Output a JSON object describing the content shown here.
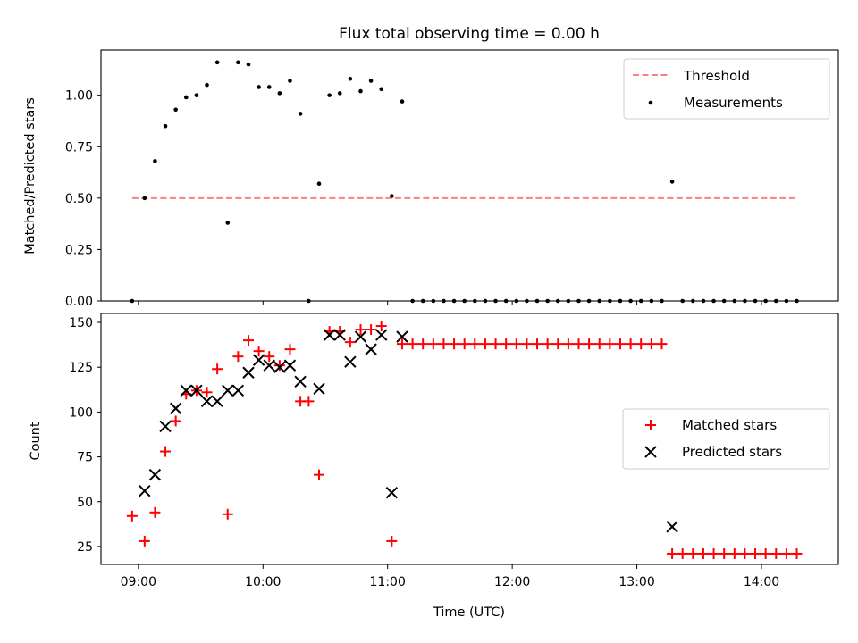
{
  "chart_data": [
    {
      "type": "scatter",
      "title": "Flux total observing time = 0.00 h",
      "xlabel": "",
      "ylabel": "Matched/Predicted stars",
      "ylim": [
        0,
        1.22
      ],
      "yticks": [
        "0.00",
        "0.25",
        "0.50",
        "0.75",
        "1.00"
      ],
      "ytick_values": [
        0,
        0.25,
        0.5,
        0.75,
        1.0
      ],
      "legend_position": "top-right",
      "threshold": {
        "name": "Threshold",
        "value": 0.5,
        "x_start": "08:57",
        "x_end": "14:17",
        "color": "#ff7f7f",
        "style": "dashed"
      },
      "series": [
        {
          "name": "Measurements",
          "color": "#000000",
          "marker": "dot",
          "points": [
            [
              "08:57",
              0.0
            ],
            [
              "09:03",
              0.5
            ],
            [
              "09:08",
              0.68
            ],
            [
              "09:13",
              0.85
            ],
            [
              "09:18",
              0.93
            ],
            [
              "09:23",
              0.99
            ],
            [
              "09:28",
              1.0
            ],
            [
              "09:33",
              1.05
            ],
            [
              "09:38",
              1.16
            ],
            [
              "09:43",
              0.38
            ],
            [
              "09:48",
              1.16
            ],
            [
              "09:53",
              1.15
            ],
            [
              "09:58",
              1.04
            ],
            [
              "10:03",
              1.04
            ],
            [
              "10:08",
              1.01
            ],
            [
              "10:13",
              1.07
            ],
            [
              "10:18",
              0.91
            ],
            [
              "10:22",
              0.0
            ],
            [
              "10:27",
              0.57
            ],
            [
              "10:32",
              1.0
            ],
            [
              "10:37",
              1.01
            ],
            [
              "10:42",
              1.08
            ],
            [
              "10:47",
              1.02
            ],
            [
              "10:52",
              1.07
            ],
            [
              "10:57",
              1.03
            ],
            [
              "11:02",
              0.51
            ],
            [
              "11:07",
              0.97
            ],
            [
              "11:12",
              0.0
            ],
            [
              "11:17",
              0.0
            ],
            [
              "11:22",
              0.0
            ],
            [
              "11:27",
              0.0
            ],
            [
              "11:32",
              0.0
            ],
            [
              "11:37",
              0.0
            ],
            [
              "11:42",
              0.0
            ],
            [
              "11:47",
              0.0
            ],
            [
              "11:52",
              0.0
            ],
            [
              "11:57",
              0.0
            ],
            [
              "12:02",
              0.0
            ],
            [
              "12:07",
              0.0
            ],
            [
              "12:12",
              0.0
            ],
            [
              "12:17",
              0.0
            ],
            [
              "12:22",
              0.0
            ],
            [
              "12:27",
              0.0
            ],
            [
              "12:32",
              0.0
            ],
            [
              "12:37",
              0.0
            ],
            [
              "12:42",
              0.0
            ],
            [
              "12:47",
              0.0
            ],
            [
              "12:52",
              0.0
            ],
            [
              "12:57",
              0.0
            ],
            [
              "13:02",
              0.0
            ],
            [
              "13:07",
              0.0
            ],
            [
              "13:12",
              0.0
            ],
            [
              "13:17",
              0.58
            ],
            [
              "13:22",
              0.0
            ],
            [
              "13:27",
              0.0
            ],
            [
              "13:32",
              0.0
            ],
            [
              "13:37",
              0.0
            ],
            [
              "13:42",
              0.0
            ],
            [
              "13:47",
              0.0
            ],
            [
              "13:52",
              0.0
            ],
            [
              "13:57",
              0.0
            ],
            [
              "14:02",
              0.0
            ],
            [
              "14:07",
              0.0
            ],
            [
              "14:12",
              0.0
            ],
            [
              "14:17",
              0.0
            ]
          ]
        }
      ]
    },
    {
      "type": "scatter",
      "title": "",
      "xlabel": "Time (UTC)",
      "ylabel": "Count",
      "xlim": [
        "08:42",
        "14:37"
      ],
      "xticks": [
        "09:00",
        "10:00",
        "11:00",
        "12:00",
        "13:00",
        "14:00"
      ],
      "ylim": [
        15,
        155
      ],
      "yticks": [
        "25",
        "50",
        "75",
        "100",
        "125",
        "150"
      ],
      "ytick_values": [
        25,
        50,
        75,
        100,
        125,
        150
      ],
      "legend_position": "center-right",
      "series": [
        {
          "name": "Matched stars",
          "color": "#ff0000",
          "marker": "plus",
          "points": [
            [
              "08:57",
              42
            ],
            [
              "09:03",
              28
            ],
            [
              "09:08",
              44
            ],
            [
              "09:13",
              78
            ],
            [
              "09:18",
              95
            ],
            [
              "09:23",
              110
            ],
            [
              "09:28",
              112
            ],
            [
              "09:33",
              111
            ],
            [
              "09:38",
              124
            ],
            [
              "09:43",
              43
            ],
            [
              "09:48",
              131
            ],
            [
              "09:53",
              140
            ],
            [
              "09:58",
              134
            ],
            [
              "10:03",
              131
            ],
            [
              "10:08",
              126
            ],
            [
              "10:13",
              135
            ],
            [
              "10:18",
              106
            ],
            [
              "10:22",
              106
            ],
            [
              "10:27",
              65
            ],
            [
              "10:32",
              145
            ],
            [
              "10:37",
              145
            ],
            [
              "10:42",
              139
            ],
            [
              "10:47",
              146
            ],
            [
              "10:52",
              146
            ],
            [
              "10:57",
              148
            ],
            [
              "11:02",
              28
            ],
            [
              "11:07",
              138
            ],
            [
              "11:12",
              138
            ],
            [
              "11:17",
              138
            ],
            [
              "11:22",
              138
            ],
            [
              "11:27",
              138
            ],
            [
              "11:32",
              138
            ],
            [
              "11:37",
              138
            ],
            [
              "11:42",
              138
            ],
            [
              "11:47",
              138
            ],
            [
              "11:52",
              138
            ],
            [
              "11:57",
              138
            ],
            [
              "12:02",
              138
            ],
            [
              "12:07",
              138
            ],
            [
              "12:12",
              138
            ],
            [
              "12:17",
              138
            ],
            [
              "12:22",
              138
            ],
            [
              "12:27",
              138
            ],
            [
              "12:32",
              138
            ],
            [
              "12:37",
              138
            ],
            [
              "12:42",
              138
            ],
            [
              "12:47",
              138
            ],
            [
              "12:52",
              138
            ],
            [
              "12:57",
              138
            ],
            [
              "13:02",
              138
            ],
            [
              "13:07",
              138
            ],
            [
              "13:12",
              138
            ],
            [
              "13:17",
              21
            ],
            [
              "13:22",
              21
            ],
            [
              "13:27",
              21
            ],
            [
              "13:32",
              21
            ],
            [
              "13:37",
              21
            ],
            [
              "13:42",
              21
            ],
            [
              "13:47",
              21
            ],
            [
              "13:52",
              21
            ],
            [
              "13:57",
              21
            ],
            [
              "14:02",
              21
            ],
            [
              "14:07",
              21
            ],
            [
              "14:12",
              21
            ],
            [
              "14:17",
              21
            ]
          ]
        },
        {
          "name": "Predicted stars",
          "color": "#000000",
          "marker": "x",
          "points": [
            [
              "09:03",
              56
            ],
            [
              "09:08",
              65
            ],
            [
              "09:13",
              92
            ],
            [
              "09:18",
              102
            ],
            [
              "09:23",
              112
            ],
            [
              "09:28",
              112
            ],
            [
              "09:33",
              106
            ],
            [
              "09:38",
              106
            ],
            [
              "09:43",
              112
            ],
            [
              "09:48",
              112
            ],
            [
              "09:53",
              122
            ],
            [
              "09:58",
              129
            ],
            [
              "10:03",
              126
            ],
            [
              "10:08",
              125
            ],
            [
              "10:13",
              126
            ],
            [
              "10:18",
              117
            ],
            [
              "10:27",
              113
            ],
            [
              "10:32",
              143
            ],
            [
              "10:37",
              143
            ],
            [
              "10:42",
              128
            ],
            [
              "10:47",
              142
            ],
            [
              "10:52",
              135
            ],
            [
              "10:57",
              143
            ],
            [
              "11:02",
              55
            ],
            [
              "11:07",
              142
            ],
            [
              "13:17",
              36
            ]
          ]
        }
      ]
    }
  ]
}
